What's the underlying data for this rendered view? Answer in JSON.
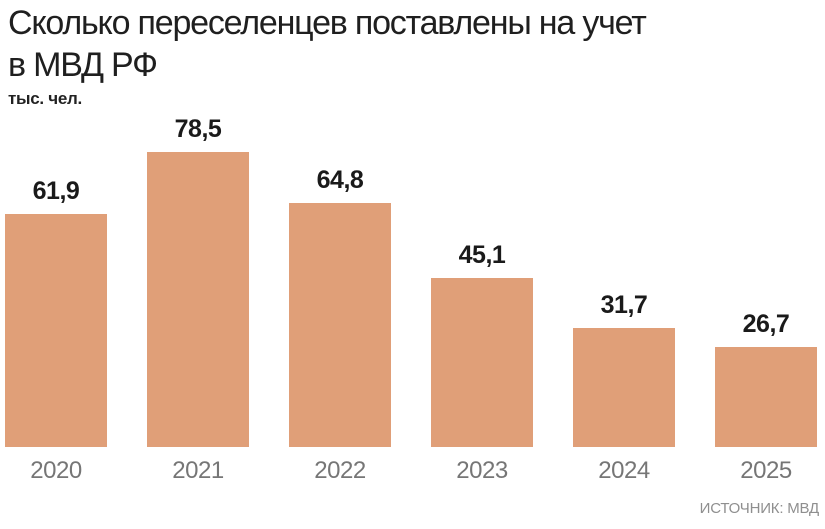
{
  "title": {
    "line1": "Сколько переселенцев поставлены на учет",
    "line2": "в МВД РФ"
  },
  "units_label": "тыс. чел.",
  "source_label": "ИСТОЧНИК: МВД",
  "colors": {
    "bar": "#e09f78",
    "title_text": "#1f1f1f",
    "value_label": "#1a1a1a",
    "year_label": "#767676",
    "source_text": "#8f8f8f",
    "background": "#ffffff"
  },
  "chart_data": {
    "type": "bar",
    "title": "Сколько переселенцев поставлены на учет в МВД РФ",
    "ylabel": "тыс. чел.",
    "xlabel": "",
    "categories": [
      "2020",
      "2021",
      "2022",
      "2023",
      "2024",
      "2025"
    ],
    "values": [
      61.9,
      78.5,
      64.8,
      45.1,
      31.7,
      26.7
    ],
    "value_labels": [
      "61,9",
      "78,5",
      "64,8",
      "45,1",
      "31,7",
      "26,7"
    ],
    "ylim": [
      0,
      78.5
    ],
    "grid": false,
    "legend_position": "none",
    "source": "ИСТОЧНИК: МВД"
  }
}
